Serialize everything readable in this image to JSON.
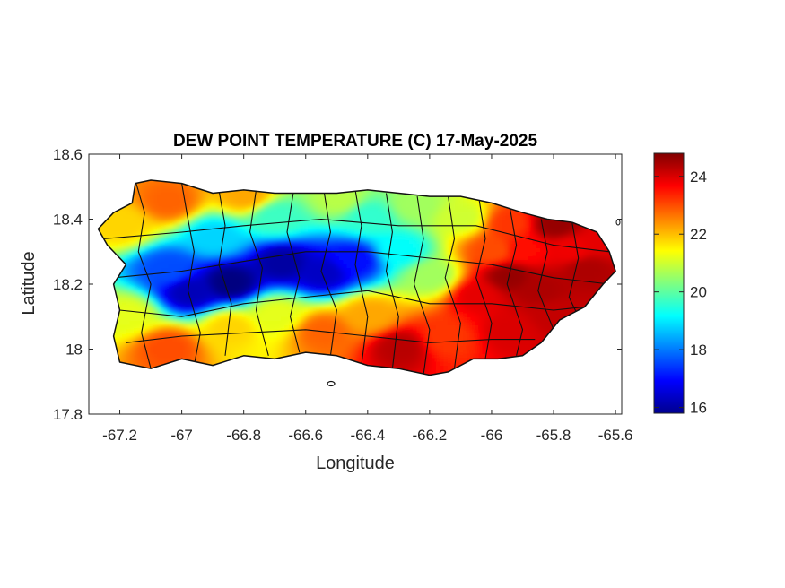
{
  "title": "DEW POINT TEMPERATURE (C) 17-May-2025",
  "xlabel": "Longitude",
  "ylabel": "Latitude",
  "xlim": [
    -67.3,
    -65.58
  ],
  "ylim": [
    17.8,
    18.6
  ],
  "xticks": [
    {
      "value": -67.2,
      "label": "-67.2"
    },
    {
      "value": -67.0,
      "label": "-67"
    },
    {
      "value": -66.8,
      "label": "-66.8"
    },
    {
      "value": -66.6,
      "label": "-66.6"
    },
    {
      "value": -66.4,
      "label": "-66.4"
    },
    {
      "value": -66.2,
      "label": "-66.2"
    },
    {
      "value": -66.0,
      "label": "-66"
    },
    {
      "value": -65.8,
      "label": "-65.8"
    },
    {
      "value": -65.6,
      "label": "-65.6"
    }
  ],
  "yticks": [
    {
      "value": 17.8,
      "label": "17.8"
    },
    {
      "value": 18.0,
      "label": "18"
    },
    {
      "value": 18.2,
      "label": "18.2"
    },
    {
      "value": 18.4,
      "label": "18.4"
    },
    {
      "value": 18.6,
      "label": "18.6"
    }
  ],
  "colorbar": {
    "colormap": "jet",
    "range": [
      15.8,
      24.8
    ],
    "ticks": [
      {
        "value": 16,
        "label": "16"
      },
      {
        "value": 18,
        "label": "18"
      },
      {
        "value": 20,
        "label": "20"
      },
      {
        "value": 22,
        "label": "22"
      },
      {
        "value": 24,
        "label": "24"
      }
    ]
  },
  "island_outline": [
    [
      -67.27,
      18.37
    ],
    [
      -67.22,
      18.42
    ],
    [
      -67.16,
      18.45
    ],
    [
      -67.15,
      18.51
    ],
    [
      -67.1,
      18.52
    ],
    [
      -67.0,
      18.51
    ],
    [
      -66.9,
      18.48
    ],
    [
      -66.8,
      18.49
    ],
    [
      -66.7,
      18.48
    ],
    [
      -66.6,
      18.48
    ],
    [
      -66.5,
      18.48
    ],
    [
      -66.4,
      18.49
    ],
    [
      -66.3,
      18.48
    ],
    [
      -66.2,
      18.47
    ],
    [
      -66.1,
      18.47
    ],
    [
      -66.0,
      18.45
    ],
    [
      -65.9,
      18.42
    ],
    [
      -65.82,
      18.4
    ],
    [
      -65.74,
      18.39
    ],
    [
      -65.66,
      18.36
    ],
    [
      -65.62,
      18.3
    ],
    [
      -65.6,
      18.24
    ],
    [
      -65.64,
      18.2
    ],
    [
      -65.7,
      18.13
    ],
    [
      -65.78,
      18.09
    ],
    [
      -65.84,
      18.02
    ],
    [
      -65.9,
      17.98
    ],
    [
      -65.98,
      17.97
    ],
    [
      -66.06,
      17.97
    ],
    [
      -66.14,
      17.93
    ],
    [
      -66.2,
      17.92
    ],
    [
      -66.3,
      17.94
    ],
    [
      -66.4,
      17.95
    ],
    [
      -66.5,
      17.98
    ],
    [
      -66.6,
      17.99
    ],
    [
      -66.7,
      17.97
    ],
    [
      -66.8,
      17.98
    ],
    [
      -66.9,
      17.95
    ],
    [
      -67.0,
      17.97
    ],
    [
      -67.1,
      17.94
    ],
    [
      -67.2,
      17.96
    ],
    [
      -67.22,
      18.04
    ],
    [
      -67.2,
      18.12
    ],
    [
      -67.22,
      18.2
    ],
    [
      -67.18,
      18.26
    ],
    [
      -67.24,
      18.32
    ]
  ],
  "dewpoint_field": [
    {
      "lon": -66.85,
      "lat": 18.2,
      "value": 15.8
    },
    {
      "lon": -66.68,
      "lat": 18.26,
      "value": 16.1
    },
    {
      "lon": -66.55,
      "lat": 18.23,
      "value": 16.4
    },
    {
      "lon": -66.45,
      "lat": 18.27,
      "value": 17.0
    },
    {
      "lon": -66.98,
      "lat": 18.17,
      "value": 16.3
    },
    {
      "lon": -67.05,
      "lat": 18.24,
      "value": 17.6
    },
    {
      "lon": -66.9,
      "lat": 18.34,
      "value": 18.8
    },
    {
      "lon": -66.7,
      "lat": 18.4,
      "value": 19.7
    },
    {
      "lon": -66.4,
      "lat": 18.4,
      "value": 19.6
    },
    {
      "lon": -66.3,
      "lat": 18.3,
      "value": 19.2
    },
    {
      "lon": -66.2,
      "lat": 18.22,
      "value": 20.6
    },
    {
      "lon": -66.1,
      "lat": 18.4,
      "value": 21.0
    },
    {
      "lon": -67.05,
      "lat": 18.45,
      "value": 22.8
    },
    {
      "lon": -66.8,
      "lat": 18.47,
      "value": 22.2
    },
    {
      "lon": -66.5,
      "lat": 18.46,
      "value": 20.8
    },
    {
      "lon": -66.25,
      "lat": 18.44,
      "value": 20.6
    },
    {
      "lon": -67.2,
      "lat": 18.38,
      "value": 21.8
    },
    {
      "lon": -67.18,
      "lat": 18.1,
      "value": 21.2
    },
    {
      "lon": -67.05,
      "lat": 18.0,
      "value": 23.0
    },
    {
      "lon": -66.85,
      "lat": 18.06,
      "value": 21.8
    },
    {
      "lon": -66.7,
      "lat": 18.1,
      "value": 21.2
    },
    {
      "lon": -66.55,
      "lat": 18.05,
      "value": 22.8
    },
    {
      "lon": -66.4,
      "lat": 18.1,
      "value": 22.2
    },
    {
      "lon": -66.3,
      "lat": 18.0,
      "value": 24.3
    },
    {
      "lon": -66.15,
      "lat": 18.03,
      "value": 23.2
    },
    {
      "lon": -66.05,
      "lat": 18.16,
      "value": 23.9
    },
    {
      "lon": -65.95,
      "lat": 18.22,
      "value": 24.6
    },
    {
      "lon": -65.85,
      "lat": 18.18,
      "value": 24.4
    },
    {
      "lon": -65.95,
      "lat": 18.05,
      "value": 24.0
    },
    {
      "lon": -65.8,
      "lat": 18.1,
      "value": 24.2
    },
    {
      "lon": -65.75,
      "lat": 18.3,
      "value": 23.8
    },
    {
      "lon": -65.7,
      "lat": 18.24,
      "value": 24.4
    },
    {
      "lon": -65.8,
      "lat": 18.38,
      "value": 24.6
    },
    {
      "lon": -65.95,
      "lat": 18.38,
      "value": 23.2
    },
    {
      "lon": -65.9,
      "lat": 18.3,
      "value": 23.6
    },
    {
      "lon": -66.0,
      "lat": 18.3,
      "value": 23.0
    },
    {
      "lon": -65.65,
      "lat": 18.33,
      "value": 23.9
    }
  ]
}
